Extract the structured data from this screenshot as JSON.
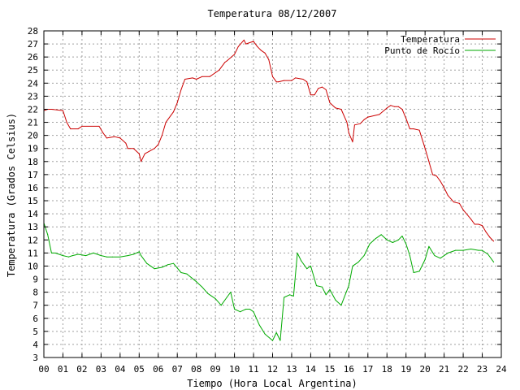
{
  "chart_data": {
    "type": "line",
    "title": "Temperatura 08/12/2007",
    "xlabel": "Tiempo (Hora Local Argentina)",
    "ylabel": "Temperatura (Grados Celsius)",
    "xlim": [
      0,
      24
    ],
    "ylim": [
      3,
      28
    ],
    "x_ticks": [
      "00",
      "01",
      "02",
      "03",
      "04",
      "05",
      "06",
      "07",
      "08",
      "09",
      "10",
      "11",
      "12",
      "13",
      "14",
      "15",
      "16",
      "17",
      "18",
      "19",
      "20",
      "21",
      "22",
      "23",
      "24"
    ],
    "y_ticks": [
      3,
      4,
      5,
      6,
      7,
      8,
      9,
      10,
      11,
      12,
      13,
      14,
      15,
      16,
      17,
      18,
      19,
      20,
      21,
      22,
      23,
      24,
      25,
      26,
      27,
      28
    ],
    "grid": true,
    "legend_position": "top-right",
    "colors": {
      "Temperatura": "#cc0000",
      "Punto de Rocío": "#00aa00"
    },
    "series": [
      {
        "name": "Temperatura",
        "x": [
          0,
          0.2,
          0.4,
          1.0,
          1.2,
          1.4,
          1.8,
          2.0,
          2.9,
          3.1,
          3.3,
          3.7,
          4.0,
          4.3,
          4.4,
          4.7,
          5.0,
          5.1,
          5.3,
          5.8,
          6.0,
          6.2,
          6.4,
          6.8,
          7.0,
          7.2,
          7.4,
          7.8,
          8.0,
          8.3,
          8.7,
          9.0,
          9.2,
          9.5,
          9.6,
          10.0,
          10.2,
          10.5,
          10.6,
          11.0,
          11.2,
          11.4,
          11.6,
          11.8,
          12.0,
          12.2,
          12.3,
          12.6,
          13.0,
          13.2,
          13.6,
          13.8,
          14.0,
          14.2,
          14.4,
          14.6,
          14.8,
          15.0,
          15.3,
          15.6,
          15.9,
          16.0,
          16.2,
          16.3,
          16.6,
          16.8,
          17.0,
          17.3,
          17.6,
          18.0,
          18.2,
          18.4,
          18.6,
          18.8,
          19.0,
          19.2,
          19.4,
          19.7,
          20.0,
          20.2,
          20.4,
          20.6,
          20.8,
          21.0,
          21.2,
          21.5,
          21.8,
          22.0,
          22.4,
          22.6,
          22.8,
          23.0,
          23.2,
          23.4,
          23.6
        ],
        "y": [
          21.9,
          22.0,
          22.0,
          21.9,
          21.0,
          20.5,
          20.5,
          20.7,
          20.7,
          20.2,
          19.8,
          19.9,
          19.8,
          19.4,
          19.0,
          19.0,
          18.6,
          18.0,
          18.6,
          19.0,
          19.3,
          20.0,
          21.0,
          21.8,
          22.5,
          23.5,
          24.3,
          24.4,
          24.3,
          24.5,
          24.5,
          24.8,
          25.0,
          25.6,
          25.7,
          26.2,
          26.8,
          27.3,
          27.0,
          27.2,
          26.8,
          26.5,
          26.3,
          25.8,
          24.5,
          24.1,
          24.1,
          24.2,
          24.2,
          24.4,
          24.3,
          24.1,
          23.1,
          23.1,
          23.6,
          23.7,
          23.5,
          22.5,
          22.1,
          22.0,
          21.0,
          20.2,
          19.5,
          20.8,
          20.9,
          21.2,
          21.4,
          21.5,
          21.6,
          22.1,
          22.3,
          22.2,
          22.2,
          22.0,
          21.3,
          20.5,
          20.5,
          20.4,
          19.0,
          18.0,
          17.0,
          16.9,
          16.5,
          16.0,
          15.4,
          14.9,
          14.8,
          14.3,
          13.6,
          13.2,
          13.2,
          13.1,
          12.6,
          12.2,
          11.9
        ]
      },
      {
        "name": "Punto de Rocío",
        "x": [
          0,
          0.2,
          0.4,
          0.6,
          1.0,
          1.3,
          1.5,
          1.8,
          2.2,
          2.6,
          3.0,
          3.3,
          3.6,
          4.0,
          4.4,
          4.7,
          5.0,
          5.1,
          5.4,
          5.8,
          6.2,
          6.5,
          6.8,
          7.2,
          7.5,
          8.0,
          8.3,
          8.6,
          9.0,
          9.3,
          9.6,
          9.8,
          10.0,
          10.3,
          10.6,
          10.8,
          11.0,
          11.3,
          11.6,
          12.0,
          12.2,
          12.4,
          12.6,
          12.9,
          13.1,
          13.3,
          13.5,
          13.8,
          14.0,
          14.3,
          14.6,
          14.8,
          15.0,
          15.3,
          15.6,
          16.0,
          16.2,
          16.5,
          16.8,
          17.1,
          17.4,
          17.7,
          18.0,
          18.3,
          18.6,
          18.8,
          19.0,
          19.2,
          19.4,
          19.7,
          20.0,
          20.2,
          20.5,
          20.8,
          21.2,
          21.6,
          22.0,
          22.4,
          22.8,
          23.0,
          23.3,
          23.6
        ],
        "y": [
          13.3,
          12.4,
          11.0,
          11.0,
          10.8,
          10.7,
          10.8,
          10.9,
          10.8,
          11.0,
          10.8,
          10.7,
          10.7,
          10.7,
          10.8,
          10.9,
          11.1,
          10.8,
          10.2,
          9.8,
          9.9,
          10.1,
          10.2,
          9.5,
          9.4,
          8.8,
          8.4,
          7.9,
          7.5,
          7.0,
          7.6,
          8.0,
          6.7,
          6.5,
          6.7,
          6.7,
          6.5,
          5.5,
          4.8,
          4.3,
          4.9,
          4.3,
          7.6,
          7.8,
          7.7,
          11.0,
          10.4,
          9.8,
          10.0,
          8.5,
          8.4,
          7.8,
          8.2,
          7.4,
          7.0,
          8.5,
          10.0,
          10.3,
          10.8,
          11.7,
          12.1,
          12.4,
          12.0,
          11.8,
          12.0,
          12.3,
          11.7,
          10.8,
          9.5,
          9.6,
          10.5,
          11.5,
          10.8,
          10.6,
          11.0,
          11.2,
          11.2,
          11.3,
          11.2,
          11.2,
          10.9,
          10.3
        ]
      }
    ]
  }
}
